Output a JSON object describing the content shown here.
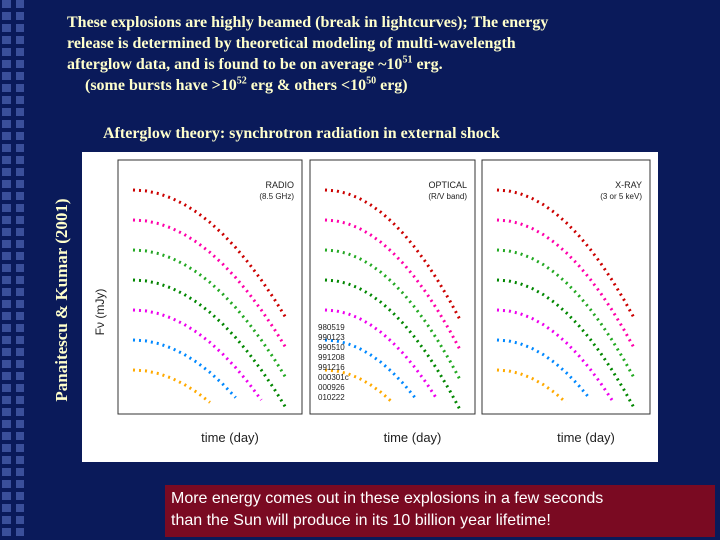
{
  "title": {
    "lines": [
      [
        {
          "t": "These explosions are highly beamed (break in lightcurves); The energy"
        }
      ],
      [
        {
          "t": "release is determined by theoretical modeling of multi-wavelength"
        }
      ],
      [
        {
          "t": "afterglow data, and is found to be on average ~10"
        },
        {
          "sup": "51"
        },
        {
          "t": " erg."
        }
      ],
      [
        {
          "t": "(some bursts have >10"
        },
        {
          "sup": "52"
        },
        {
          "t": " erg &  others <10"
        },
        {
          "sup": "50"
        },
        {
          "t": " erg)"
        }
      ]
    ]
  },
  "subtitle": "Afterglow theory: synchrotron radiation in external shock",
  "credit": "Panaitescu & Kumar (2001)",
  "figure": {
    "y_label": "Fν (mJy)",
    "panels": [
      {
        "label": "RADIO",
        "sublabel": "(8.5 GHz)",
        "x_label": "time (day)"
      },
      {
        "label": "OPTICAL",
        "sublabel": "(R/V band)",
        "x_label": "time (day)"
      },
      {
        "label": "X-RAY",
        "sublabel": "(3 or 5 keV)",
        "x_label": "time (day)"
      }
    ],
    "legend": [
      "980519",
      "990123",
      "990510",
      "991208",
      "991216",
      "000301c",
      "000926",
      "010222"
    ]
  },
  "note": {
    "lines": [
      "More energy comes out in these explosions in a few seconds",
      "than the Sun will produce in its 10 billion year lifetime!"
    ]
  }
}
